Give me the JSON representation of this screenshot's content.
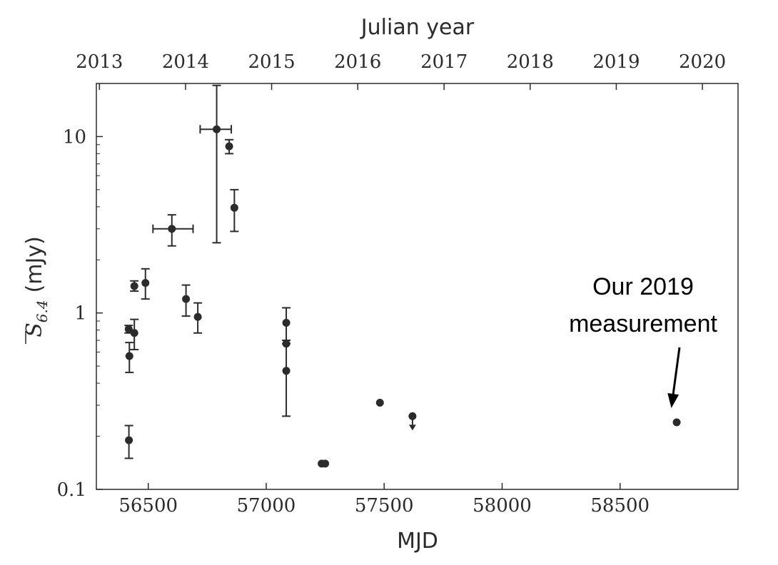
{
  "chart_data": {
    "type": "scatter",
    "xlabel": "MJD",
    "ylabel_main": "S",
    "ylabel_sub": "6.4",
    "ylabel_unit": "(mJy)",
    "top_axis_label": "Julian year",
    "xlim": [
      56280,
      59000
    ],
    "ylim": [
      0.1,
      20
    ],
    "y_scale": "log",
    "grid": false,
    "x_ticks": [
      "56500",
      "57000",
      "57500",
      "58000",
      "58500"
    ],
    "y_ticks": [
      "0.1",
      "1",
      "10"
    ],
    "top_ticks": [
      "2013",
      "2014",
      "2015",
      "2016",
      "2017",
      "2018",
      "2019",
      "2020"
    ],
    "points": [
      {
        "x": 56417,
        "y": 0.81,
        "ylo": 0.77,
        "yhi": 0.85
      },
      {
        "x": 56420,
        "y": 0.57,
        "ylo": 0.46,
        "yhi": 0.68
      },
      {
        "x": 56418,
        "y": 0.19,
        "ylo": 0.15,
        "yhi": 0.23
      },
      {
        "x": 56441,
        "y": 0.77,
        "ylo": 0.62,
        "yhi": 0.92
      },
      {
        "x": 56441,
        "y": 1.42,
        "ylo": 1.33,
        "yhi": 1.52
      },
      {
        "x": 56488,
        "y": 1.48,
        "ylo": 1.2,
        "yhi": 1.78
      },
      {
        "x": 56600,
        "y": 3.0,
        "ylo": 2.4,
        "yhi": 3.6,
        "xlo": 56520,
        "xhi": 56690
      },
      {
        "x": 56660,
        "y": 1.2,
        "ylo": 0.96,
        "yhi": 1.44
      },
      {
        "x": 56710,
        "y": 0.95,
        "ylo": 0.77,
        "yhi": 1.14
      },
      {
        "x": 56790,
        "y": 11.0,
        "ylo": 2.5,
        "yhi": 19.5,
        "xlo": 56720,
        "xhi": 56852
      },
      {
        "x": 56843,
        "y": 8.8,
        "ylo": 8.0,
        "yhi": 9.6
      },
      {
        "x": 56865,
        "y": 3.95,
        "ylo": 2.9,
        "yhi": 5.0
      },
      {
        "x": 57085,
        "y": 0.88,
        "ylo": 0.7,
        "yhi": 1.07
      },
      {
        "x": 57085,
        "y": 0.67
      },
      {
        "x": 57085,
        "y": 0.47,
        "ylo": 0.26,
        "yhi": 0.67
      },
      {
        "x": 57235,
        "y": 0.14
      },
      {
        "x": 57250,
        "y": 0.14
      },
      {
        "x": 57482,
        "y": 0.31
      },
      {
        "x": 57620,
        "y": 0.26,
        "upper_limit": true
      },
      {
        "x": 58740,
        "y": 0.24
      }
    ],
    "annotations": [
      {
        "lines": [
          "Our 2019",
          "measurement"
        ],
        "target_x": 58740,
        "target_y": 0.24
      }
    ]
  }
}
